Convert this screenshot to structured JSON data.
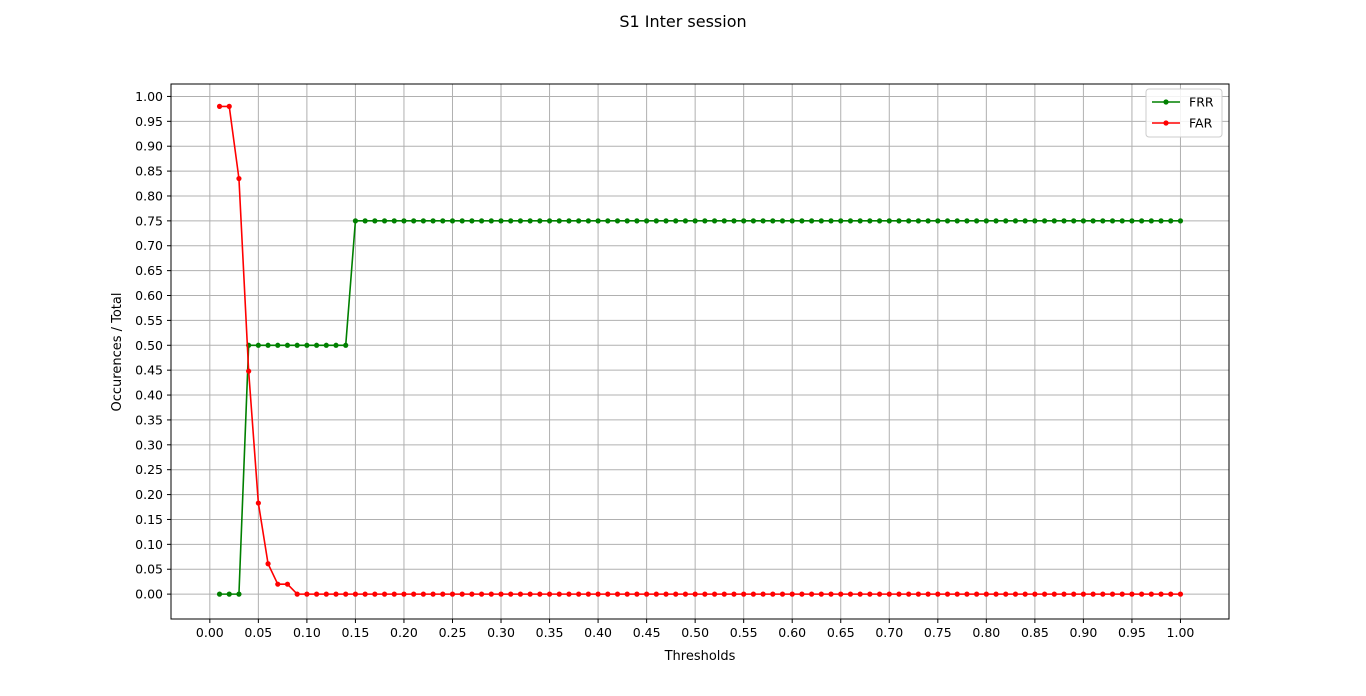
{
  "chart_data": {
    "type": "line",
    "title": "S1 Inter session",
    "xlabel": "Thresholds",
    "ylabel": "Occurences / Total",
    "xlim": [
      -0.04,
      1.05
    ],
    "ylim": [
      -0.05,
      1.025
    ],
    "x_ticks": [
      "0.00",
      "0.05",
      "0.10",
      "0.15",
      "0.20",
      "0.25",
      "0.30",
      "0.35",
      "0.40",
      "0.45",
      "0.50",
      "0.55",
      "0.60",
      "0.65",
      "0.70",
      "0.75",
      "0.80",
      "0.85",
      "0.90",
      "0.95",
      "1.00"
    ],
    "y_ticks": [
      "0.00",
      "0.05",
      "0.10",
      "0.15",
      "0.20",
      "0.25",
      "0.30",
      "0.35",
      "0.40",
      "0.45",
      "0.50",
      "0.55",
      "0.60",
      "0.65",
      "0.70",
      "0.75",
      "0.80",
      "0.85",
      "0.90",
      "0.95",
      "1.00"
    ],
    "grid": true,
    "legend_position": "top-right",
    "x": [
      0.01,
      0.02,
      0.03,
      0.04,
      0.05,
      0.06,
      0.07,
      0.08,
      0.09,
      0.1,
      0.11,
      0.12,
      0.13,
      0.14,
      0.15,
      0.16,
      0.17,
      0.18,
      0.19,
      0.2,
      0.21,
      0.22,
      0.23,
      0.24,
      0.25,
      0.26,
      0.27,
      0.28,
      0.29,
      0.3,
      0.31,
      0.32,
      0.33,
      0.34,
      0.35,
      0.36,
      0.37,
      0.38,
      0.39,
      0.4,
      0.41,
      0.42,
      0.43,
      0.44,
      0.45,
      0.46,
      0.47,
      0.48,
      0.49,
      0.5,
      0.51,
      0.52,
      0.53,
      0.54,
      0.55,
      0.56,
      0.57,
      0.58,
      0.59,
      0.6,
      0.61,
      0.62,
      0.63,
      0.64,
      0.65,
      0.66,
      0.67,
      0.68,
      0.69,
      0.7,
      0.71,
      0.72,
      0.73,
      0.74,
      0.75,
      0.76,
      0.77,
      0.78,
      0.79,
      0.8,
      0.81,
      0.82,
      0.83,
      0.84,
      0.85,
      0.86,
      0.87,
      0.88,
      0.89,
      0.9,
      0.91,
      0.92,
      0.93,
      0.94,
      0.95,
      0.96,
      0.97,
      0.98,
      0.99,
      1.0
    ],
    "series": [
      {
        "name": "FRR",
        "color": "#008000",
        "values": [
          0,
          0,
          0,
          0.5,
          0.5,
          0.5,
          0.5,
          0.5,
          0.5,
          0.5,
          0.5,
          0.5,
          0.5,
          0.5,
          0.75,
          0.75,
          0.75,
          0.75,
          0.75,
          0.75,
          0.75,
          0.75,
          0.75,
          0.75,
          0.75,
          0.75,
          0.75,
          0.75,
          0.75,
          0.75,
          0.75,
          0.75,
          0.75,
          0.75,
          0.75,
          0.75,
          0.75,
          0.75,
          0.75,
          0.75,
          0.75,
          0.75,
          0.75,
          0.75,
          0.75,
          0.75,
          0.75,
          0.75,
          0.75,
          0.75,
          0.75,
          0.75,
          0.75,
          0.75,
          0.75,
          0.75,
          0.75,
          0.75,
          0.75,
          0.75,
          0.75,
          0.75,
          0.75,
          0.75,
          0.75,
          0.75,
          0.75,
          0.75,
          0.75,
          0.75,
          0.75,
          0.75,
          0.75,
          0.75,
          0.75,
          0.75,
          0.75,
          0.75,
          0.75,
          0.75,
          0.75,
          0.75,
          0.75,
          0.75,
          0.75,
          0.75,
          0.75,
          0.75,
          0.75,
          0.75,
          0.75,
          0.75,
          0.75,
          0.75,
          0.75,
          0.75,
          0.75,
          0.75,
          0.75,
          0.75
        ]
      },
      {
        "name": "FAR",
        "color": "#ff0000",
        "values": [
          0.98,
          0.98,
          0.835,
          0.448,
          0.183,
          0.061,
          0.02,
          0.02,
          0,
          0,
          0,
          0,
          0,
          0,
          0,
          0,
          0,
          0,
          0,
          0,
          0,
          0,
          0,
          0,
          0,
          0,
          0,
          0,
          0,
          0,
          0,
          0,
          0,
          0,
          0,
          0,
          0,
          0,
          0,
          0,
          0,
          0,
          0,
          0,
          0,
          0,
          0,
          0,
          0,
          0,
          0,
          0,
          0,
          0,
          0,
          0,
          0,
          0,
          0,
          0,
          0,
          0,
          0,
          0,
          0,
          0,
          0,
          0,
          0,
          0,
          0,
          0,
          0,
          0,
          0,
          0,
          0,
          0,
          0,
          0,
          0,
          0,
          0,
          0,
          0,
          0,
          0,
          0,
          0,
          0,
          0,
          0,
          0,
          0,
          0,
          0,
          0,
          0,
          0,
          0
        ]
      }
    ]
  }
}
